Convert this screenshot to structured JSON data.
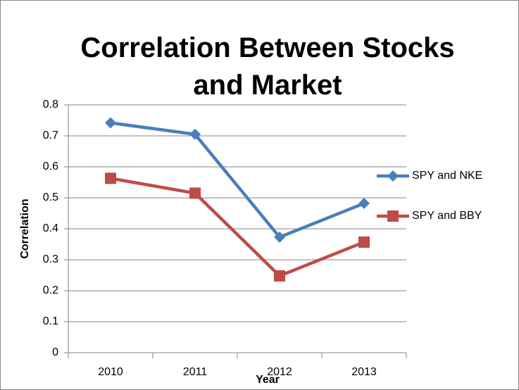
{
  "chart_data": {
    "type": "line",
    "title": "Correlation Between Stocks and Market",
    "x_label": "Year",
    "y_label": "Correlation",
    "categories": [
      "2010",
      "2011",
      "2012",
      "2013"
    ],
    "series": [
      {
        "name": "SPY and NKE",
        "color": "#4a7ebb",
        "marker": "diamond",
        "values": [
          0.742,
          0.705,
          0.373,
          0.482
        ]
      },
      {
        "name": "SPY and BBY",
        "color": "#be4b48",
        "marker": "square",
        "values": [
          0.563,
          0.515,
          0.248,
          0.357
        ]
      }
    ],
    "ylim": [
      0,
      0.8
    ],
    "yticks": [
      0,
      0.1,
      0.2,
      0.3,
      0.4,
      0.5,
      0.6,
      0.7,
      0.8
    ],
    "grid": true,
    "legend": "right"
  }
}
